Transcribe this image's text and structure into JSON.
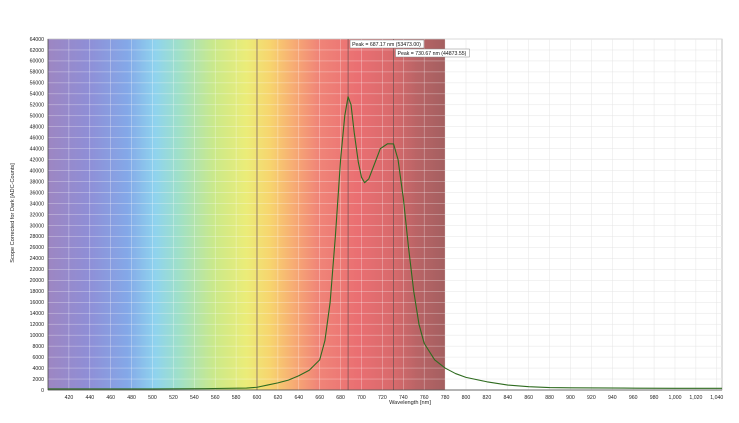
{
  "chart_data": {
    "type": "line",
    "title": "",
    "xlabel": "Wavelength [nm]",
    "ylabel": "Scope Corrected for Dark [ADC-Counts]",
    "xlim": [
      400,
      1045
    ],
    "ylim": [
      0,
      64000
    ],
    "x_ticks": [
      420,
      440,
      460,
      480,
      500,
      520,
      540,
      560,
      580,
      600,
      620,
      640,
      660,
      680,
      700,
      720,
      740,
      760,
      780,
      800,
      820,
      840,
      860,
      880,
      900,
      920,
      940,
      960,
      980,
      1000,
      1020,
      1040
    ],
    "x_tick_labels": [
      "420",
      "440",
      "460",
      "480",
      "500",
      "520",
      "540",
      "560",
      "580",
      "600",
      "620",
      "640",
      "660",
      "680",
      "700",
      "720",
      "740",
      "760",
      "780",
      "800",
      "820",
      "840",
      "860",
      "880",
      "900",
      "920",
      "940",
      "960",
      "980",
      "1,000",
      "1,020",
      "1,040"
    ],
    "y_ticks": [
      0,
      2000,
      4000,
      6000,
      8000,
      10000,
      12000,
      14000,
      16000,
      18000,
      20000,
      22000,
      24000,
      26000,
      28000,
      30000,
      32000,
      34000,
      36000,
      38000,
      40000,
      42000,
      44000,
      46000,
      48000,
      50000,
      52000,
      54000,
      56000,
      58000,
      60000,
      62000,
      64000
    ],
    "grid": true,
    "background": "visible-spectrum gradient (400–780 nm)",
    "line_color": "#2e6b1f",
    "series": [
      {
        "values": [
          [
            400,
            200
          ],
          [
            450,
            200
          ],
          [
            500,
            200
          ],
          [
            550,
            250
          ],
          [
            590,
            350
          ],
          [
            600,
            500
          ],
          [
            610,
            900
          ],
          [
            620,
            1300
          ],
          [
            630,
            1800
          ],
          [
            640,
            2600
          ],
          [
            650,
            3600
          ],
          [
            660,
            5500
          ],
          [
            665,
            9000
          ],
          [
            670,
            16000
          ],
          [
            675,
            28000
          ],
          [
            680,
            42000
          ],
          [
            684,
            50000
          ],
          [
            687.17,
            53473
          ],
          [
            690,
            52000
          ],
          [
            693,
            47000
          ],
          [
            697,
            41500
          ],
          [
            700,
            38800
          ],
          [
            703,
            37800
          ],
          [
            707,
            38500
          ],
          [
            712,
            41000
          ],
          [
            718,
            44000
          ],
          [
            725,
            44900
          ],
          [
            730.67,
            44874
          ],
          [
            735,
            42000
          ],
          [
            740,
            35000
          ],
          [
            745,
            26000
          ],
          [
            750,
            18000
          ],
          [
            755,
            12000
          ],
          [
            760,
            8500
          ],
          [
            770,
            5500
          ],
          [
            780,
            4000
          ],
          [
            790,
            3000
          ],
          [
            800,
            2300
          ],
          [
            820,
            1500
          ],
          [
            840,
            900
          ],
          [
            860,
            600
          ],
          [
            880,
            450
          ],
          [
            900,
            400
          ],
          [
            950,
            350
          ],
          [
            1000,
            300
          ],
          [
            1045,
            300
          ]
        ]
      }
    ],
    "peaks": [
      {
        "label": "Peak = 687.17 nm (53473.00)",
        "x": 687.17,
        "y": 53473
      },
      {
        "label": "Peak = 730.67 nm (44873.55)",
        "x": 730.67,
        "y": 44873.55
      }
    ],
    "vertical_markers": [
      600,
      687.17,
      730.67
    ]
  }
}
